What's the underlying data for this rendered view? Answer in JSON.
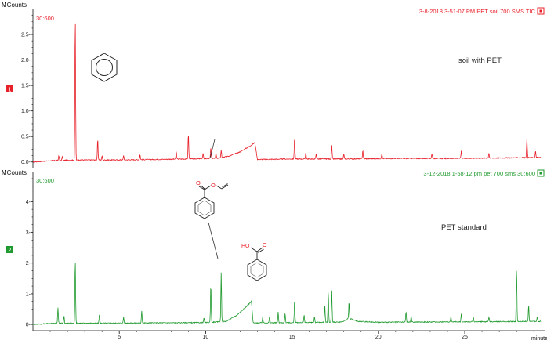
{
  "chart_data": [
    {
      "type": "line",
      "panel_index": "1",
      "ylabel": "MCounts",
      "header": "3-8-2018  3-51-07 PM   PET soil 700.SMS TIC",
      "channel": "30:600",
      "annotation": "soil with PET",
      "color": "#e8202a",
      "xlim": [
        0,
        29.4
      ],
      "ylim": [
        -0.05,
        2.9
      ],
      "yticks": [
        0.0,
        0.5,
        1.0,
        1.5,
        2.0,
        2.5
      ],
      "ytick_labels": [
        "0.0-",
        "0.5-",
        "1.0-",
        "1.5-",
        "2.0-",
        "2.5-"
      ],
      "baseline": [
        [
          0,
          0.0
        ],
        [
          1.3,
          0.03
        ],
        [
          3.0,
          0.04
        ],
        [
          5.0,
          0.04
        ],
        [
          7.0,
          0.05
        ],
        [
          9.0,
          0.06
        ],
        [
          10.6,
          0.07
        ],
        [
          11.4,
          0.12
        ],
        [
          12.0,
          0.2
        ],
        [
          12.5,
          0.3
        ],
        [
          12.85,
          0.38
        ],
        [
          13.0,
          0.05
        ],
        [
          15.0,
          0.06
        ],
        [
          18.0,
          0.06
        ],
        [
          21.0,
          0.07
        ],
        [
          24.0,
          0.07
        ],
        [
          27.0,
          0.08
        ],
        [
          29.4,
          0.09
        ]
      ],
      "peaks": [
        {
          "x": 1.5,
          "y": 0.1
        },
        {
          "x": 1.7,
          "y": 0.08
        },
        {
          "x": 2.45,
          "y": 2.85
        },
        {
          "x": 3.75,
          "y": 0.42
        },
        {
          "x": 4.0,
          "y": 0.08
        },
        {
          "x": 5.25,
          "y": 0.09
        },
        {
          "x": 6.2,
          "y": 0.1
        },
        {
          "x": 8.3,
          "y": 0.15
        },
        {
          "x": 9.0,
          "y": 0.5
        },
        {
          "x": 9.85,
          "y": 0.1
        },
        {
          "x": 10.3,
          "y": 0.22
        },
        {
          "x": 10.6,
          "y": 0.1
        },
        {
          "x": 10.9,
          "y": 0.15
        },
        {
          "x": 15.15,
          "y": 0.42
        },
        {
          "x": 15.8,
          "y": 0.13
        },
        {
          "x": 16.4,
          "y": 0.1
        },
        {
          "x": 17.3,
          "y": 0.27
        },
        {
          "x": 18.0,
          "y": 0.1
        },
        {
          "x": 19.1,
          "y": 0.17
        },
        {
          "x": 20.2,
          "y": 0.1
        },
        {
          "x": 23.1,
          "y": 0.1
        },
        {
          "x": 24.8,
          "y": 0.14
        },
        {
          "x": 26.4,
          "y": 0.1
        },
        {
          "x": 28.6,
          "y": 0.38
        },
        {
          "x": 29.1,
          "y": 0.12
        }
      ]
    },
    {
      "type": "line",
      "panel_index": "2",
      "ylabel": "MCounts",
      "header": "3-12-2018  1-58-12 pm   pet 700 sms 30:600",
      "channel": "30:600",
      "annotation": "PET standard",
      "color": "#1f9a2e",
      "xlim": [
        0,
        29.4
      ],
      "ylim": [
        -0.1,
        4.8
      ],
      "yticks": [
        0,
        1,
        2,
        3,
        4
      ],
      "ytick_labels": [
        "0-",
        "1-",
        "2-",
        "3-",
        "4-"
      ],
      "xticks": [
        5,
        10,
        15,
        20,
        25
      ],
      "xtick_labels": [
        "5",
        "10",
        "15",
        "20",
        "25"
      ],
      "xlabel": "minutes",
      "baseline": [
        [
          0,
          0.0
        ],
        [
          1.3,
          0.04
        ],
        [
          4.0,
          0.04
        ],
        [
          7.0,
          0.05
        ],
        [
          10.0,
          0.06
        ],
        [
          11.2,
          0.1
        ],
        [
          11.8,
          0.3
        ],
        [
          12.3,
          0.55
        ],
        [
          12.65,
          0.75
        ],
        [
          12.75,
          0.05
        ],
        [
          16.0,
          0.06
        ],
        [
          17.9,
          0.08
        ],
        [
          18.3,
          0.2
        ],
        [
          18.8,
          0.1
        ],
        [
          20.0,
          0.07
        ],
        [
          23.0,
          0.08
        ],
        [
          26.0,
          0.09
        ],
        [
          29.4,
          0.1
        ]
      ],
      "peaks": [
        {
          "x": 1.45,
          "y": 0.5
        },
        {
          "x": 1.8,
          "y": 0.25
        },
        {
          "x": 2.45,
          "y": 2.1
        },
        {
          "x": 3.85,
          "y": 0.3
        },
        {
          "x": 5.25,
          "y": 0.2
        },
        {
          "x": 6.3,
          "y": 0.4
        },
        {
          "x": 9.9,
          "y": 0.15
        },
        {
          "x": 10.3,
          "y": 1.25
        },
        {
          "x": 10.9,
          "y": 1.6
        },
        {
          "x": 13.3,
          "y": 0.18
        },
        {
          "x": 13.7,
          "y": 0.2
        },
        {
          "x": 14.2,
          "y": 0.35
        },
        {
          "x": 14.6,
          "y": 0.3
        },
        {
          "x": 15.15,
          "y": 0.75
        },
        {
          "x": 15.7,
          "y": 0.25
        },
        {
          "x": 16.3,
          "y": 0.2
        },
        {
          "x": 16.9,
          "y": 0.55
        },
        {
          "x": 17.1,
          "y": 1.0
        },
        {
          "x": 17.3,
          "y": 1.05
        },
        {
          "x": 18.3,
          "y": 0.55
        },
        {
          "x": 21.6,
          "y": 0.35
        },
        {
          "x": 21.9,
          "y": 0.2
        },
        {
          "x": 24.2,
          "y": 0.15
        },
        {
          "x": 24.8,
          "y": 0.25
        },
        {
          "x": 25.5,
          "y": 0.15
        },
        {
          "x": 26.4,
          "y": 0.15
        },
        {
          "x": 28.0,
          "y": 1.75
        },
        {
          "x": 28.7,
          "y": 0.55
        },
        {
          "x": 29.2,
          "y": 0.15
        }
      ]
    }
  ],
  "inset_structure_labels": {
    "carbonyl_o": "O",
    "ester_o": "O",
    "acid_hydroxyl": "HO",
    "acid_carbonyl_o": "O"
  },
  "colors": {
    "axis": "#111111",
    "divider": "#111111",
    "structure": "#222222",
    "heteroatom": "#e8202a",
    "index_red": "#e8202a",
    "index_green": "#1f9a2e"
  },
  "icons": [
    "benzene-structure-icon",
    "vinyl-benzoate-structure-icon",
    "benzoic-acid-structure-icon",
    "window-box-icon"
  ]
}
